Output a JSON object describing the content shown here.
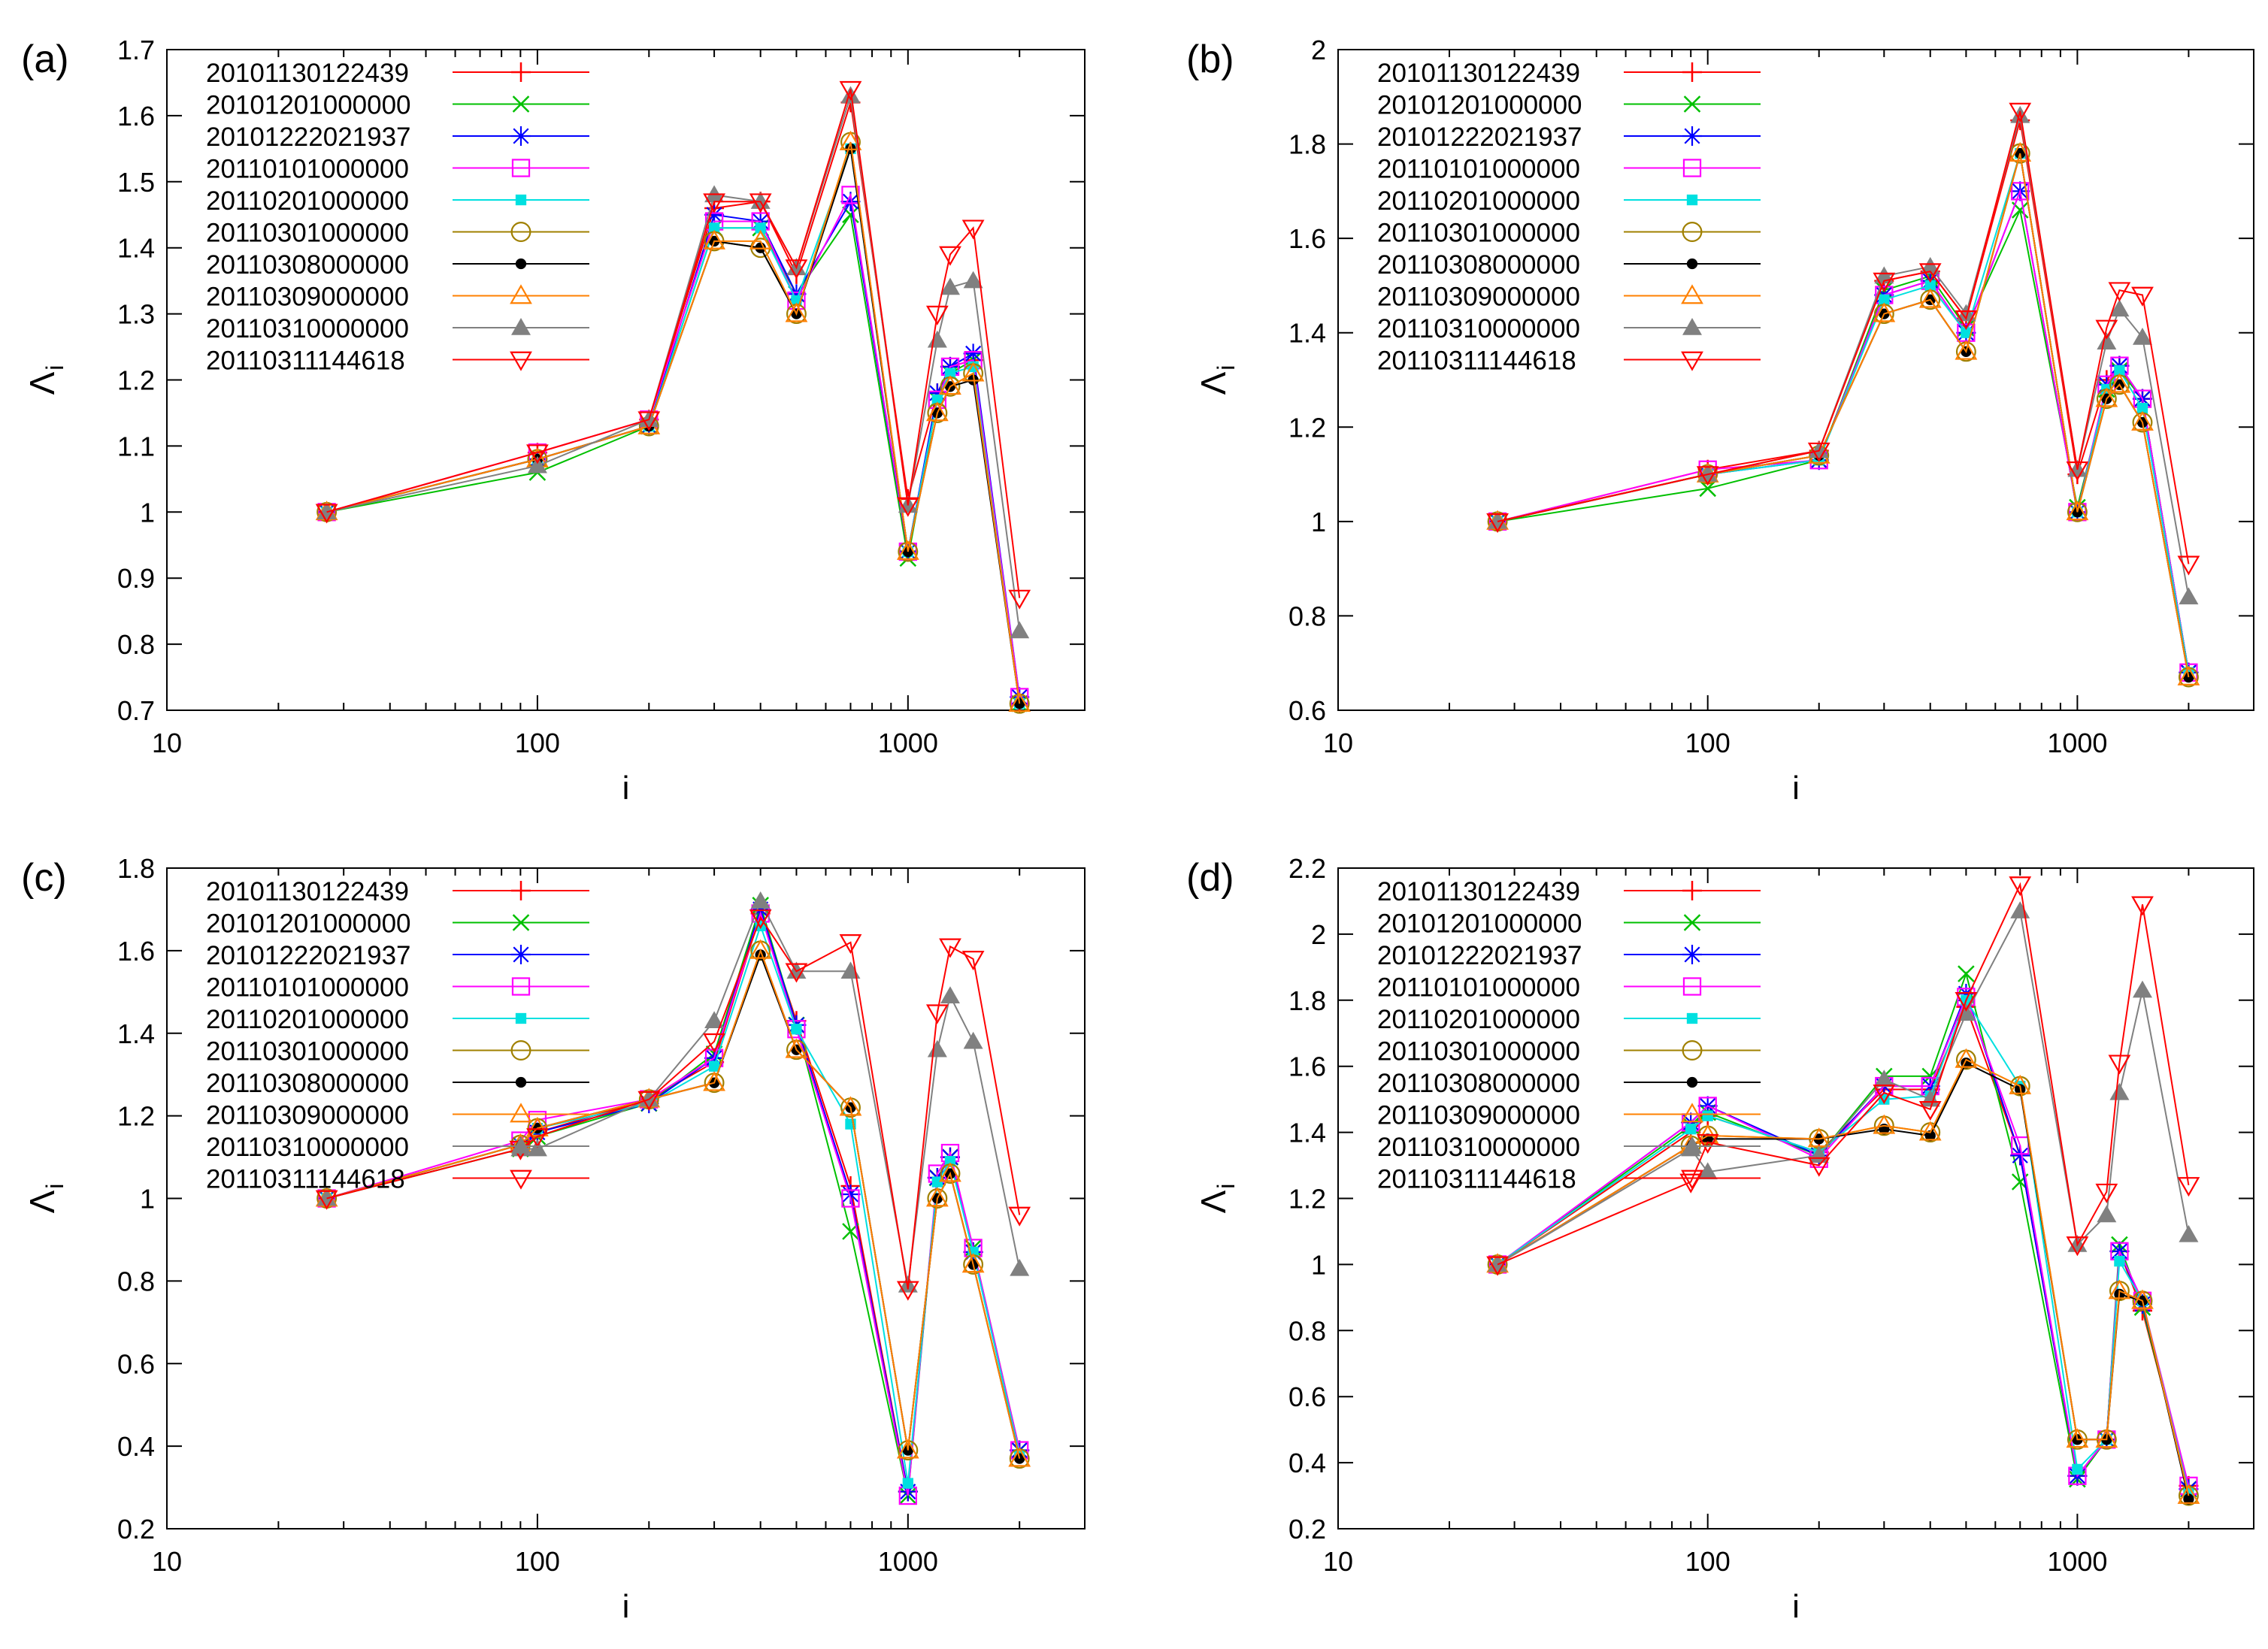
{
  "chart_data": [
    {
      "type": "line",
      "panel_label": "(a)",
      "xlabel": "i",
      "ylabel": "Λ",
      "ylabel_sub": "i",
      "x_scale": "log",
      "xlim": [
        10,
        3000
      ],
      "ylim": [
        0.7,
        1.7
      ],
      "x_ticks": [
        10,
        100,
        1000
      ],
      "y_ticks": [
        0.7,
        0.8,
        0.9,
        1,
        1.1,
        1.2,
        1.3,
        1.4,
        1.5,
        1.6,
        1.7
      ],
      "grid": false,
      "legend_position": "top-left",
      "x": [
        27,
        100,
        200,
        300,
        400,
        500,
        700,
        1000,
        1200,
        1300,
        1500,
        2000
      ],
      "series": [
        {
          "name": "20101130122439",
          "color": "#ff0000",
          "marker": "plus",
          "values": [
            1,
            1.09,
            1.14,
            1.46,
            1.47,
            1.36,
            1.62,
            1.02,
            1.18,
            1.22,
            1.23,
            0.71
          ]
        },
        {
          "name": "20101201000000",
          "color": "#00c000",
          "marker": "cross",
          "values": [
            1,
            1.06,
            1.13,
            1.43,
            1.43,
            1.33,
            1.45,
            0.93,
            1.17,
            1.21,
            1.23,
            0.71
          ]
        },
        {
          "name": "20101222021937",
          "color": "#0000ff",
          "marker": "star",
          "values": [
            1,
            1.08,
            1.13,
            1.45,
            1.44,
            1.33,
            1.47,
            0.94,
            1.18,
            1.22,
            1.24,
            0.72
          ]
        },
        {
          "name": "20110101000000",
          "color": "#ff00ff",
          "marker": "square",
          "values": [
            1,
            1.09,
            1.14,
            1.44,
            1.44,
            1.32,
            1.48,
            0.94,
            1.17,
            1.22,
            1.23,
            0.72
          ]
        },
        {
          "name": "20110201000000",
          "color": "#00e0e0",
          "marker": "filled-square",
          "values": [
            1,
            1.08,
            1.13,
            1.43,
            1.43,
            1.32,
            1.55,
            0.94,
            1.17,
            1.21,
            1.22,
            0.71
          ]
        },
        {
          "name": "20110301000000",
          "color": "#a08000",
          "marker": "circle",
          "values": [
            1,
            1.08,
            1.13,
            1.41,
            1.4,
            1.3,
            1.56,
            0.94,
            1.15,
            1.19,
            1.21,
            0.71
          ]
        },
        {
          "name": "20110308000000",
          "color": "#000000",
          "marker": "filled-circle",
          "values": [
            1,
            1.08,
            1.13,
            1.41,
            1.4,
            1.3,
            1.55,
            0.94,
            1.15,
            1.19,
            1.2,
            0.71
          ]
        },
        {
          "name": "20110309000000",
          "color": "#ff8000",
          "marker": "triangle",
          "values": [
            1,
            1.08,
            1.13,
            1.41,
            1.41,
            1.3,
            1.56,
            0.94,
            1.15,
            1.19,
            1.21,
            0.71
          ]
        },
        {
          "name": "20110310000000",
          "color": "#808080",
          "marker": "filled-triangle",
          "values": [
            1,
            1.07,
            1.14,
            1.48,
            1.47,
            1.37,
            1.63,
            1.01,
            1.26,
            1.34,
            1.35,
            0.82
          ]
        },
        {
          "name": "20110311144618",
          "color": "#ff0000",
          "marker": "inverted-triangle",
          "values": [
            1,
            1.09,
            1.14,
            1.47,
            1.47,
            1.37,
            1.64,
            1.01,
            1.3,
            1.39,
            1.43,
            0.87
          ]
        }
      ]
    },
    {
      "type": "line",
      "panel_label": "(b)",
      "xlabel": "i",
      "ylabel": "Λ",
      "ylabel_sub": "i",
      "x_scale": "log",
      "xlim": [
        10,
        3000
      ],
      "ylim": [
        0.6,
        2.0
      ],
      "x_ticks": [
        10,
        100,
        1000
      ],
      "y_ticks": [
        0.6,
        0.8,
        1,
        1.2,
        1.4,
        1.6,
        1.8,
        2
      ],
      "grid": false,
      "legend_position": "top-left",
      "x": [
        27,
        100,
        200,
        300,
        400,
        500,
        700,
        1000,
        1200,
        1300,
        1500,
        2000
      ],
      "series": [
        {
          "name": "20101130122439",
          "color": "#ff0000",
          "marker": "plus",
          "values": [
            1,
            1.11,
            1.15,
            1.51,
            1.53,
            1.43,
            1.85,
            1.1,
            1.3,
            1.33,
            1.26,
            0.68
          ]
        },
        {
          "name": "20101201000000",
          "color": "#00c000",
          "marker": "cross",
          "values": [
            1,
            1.07,
            1.13,
            1.49,
            1.52,
            1.41,
            1.66,
            1.03,
            1.28,
            1.32,
            1.26,
            0.68
          ]
        },
        {
          "name": "20101222021937",
          "color": "#0000ff",
          "marker": "star",
          "values": [
            1,
            1.1,
            1.13,
            1.48,
            1.51,
            1.4,
            1.7,
            1.02,
            1.29,
            1.33,
            1.26,
            0.68
          ]
        },
        {
          "name": "20110101000000",
          "color": "#ff00ff",
          "marker": "square",
          "values": [
            1,
            1.11,
            1.13,
            1.48,
            1.51,
            1.4,
            1.7,
            1.02,
            1.29,
            1.33,
            1.26,
            0.68
          ]
        },
        {
          "name": "20110201000000",
          "color": "#00e0e0",
          "marker": "filled-square",
          "values": [
            1,
            1.1,
            1.13,
            1.47,
            1.5,
            1.4,
            1.78,
            1.02,
            1.28,
            1.32,
            1.24,
            0.68
          ]
        },
        {
          "name": "20110301000000",
          "color": "#a08000",
          "marker": "circle",
          "values": [
            1,
            1.1,
            1.14,
            1.44,
            1.47,
            1.36,
            1.78,
            1.02,
            1.26,
            1.29,
            1.21,
            0.67
          ]
        },
        {
          "name": "20110308000000",
          "color": "#000000",
          "marker": "filled-circle",
          "values": [
            1,
            1.1,
            1.14,
            1.44,
            1.47,
            1.36,
            1.78,
            1.02,
            1.26,
            1.29,
            1.21,
            0.67
          ]
        },
        {
          "name": "20110309000000",
          "color": "#ff8000",
          "marker": "triangle",
          "values": [
            1,
            1.1,
            1.14,
            1.44,
            1.47,
            1.36,
            1.78,
            1.02,
            1.26,
            1.29,
            1.21,
            0.67
          ]
        },
        {
          "name": "20110310000000",
          "color": "#808080",
          "marker": "filled-triangle",
          "values": [
            1,
            1.1,
            1.15,
            1.52,
            1.54,
            1.44,
            1.86,
            1.11,
            1.38,
            1.45,
            1.39,
            0.84
          ]
        },
        {
          "name": "20110311144618",
          "color": "#ff0000",
          "marker": "inverted-triangle",
          "values": [
            1,
            1.1,
            1.15,
            1.51,
            1.53,
            1.43,
            1.87,
            1.11,
            1.41,
            1.49,
            1.48,
            0.91
          ]
        }
      ]
    },
    {
      "type": "line",
      "panel_label": "(c)",
      "xlabel": "i",
      "ylabel": "Λ",
      "ylabel_sub": "i",
      "x_scale": "log",
      "xlim": [
        10,
        3000
      ],
      "ylim": [
        0.2,
        1.8
      ],
      "x_ticks": [
        10,
        100,
        1000
      ],
      "y_ticks": [
        0.2,
        0.4,
        0.6,
        0.8,
        1,
        1.2,
        1.4,
        1.6,
        1.8
      ],
      "grid": false,
      "legend_position": "top-left",
      "x": [
        27,
        90,
        100,
        200,
        300,
        400,
        500,
        700,
        1000,
        1200,
        1300,
        1500,
        2000
      ],
      "series": [
        {
          "name": "20101130122439",
          "color": "#ff0000",
          "marker": "plus",
          "values": [
            1,
            1.12,
            1.16,
            1.24,
            1.33,
            1.69,
            1.43,
            1.03,
            0.29,
            1.05,
            1.1,
            0.87,
            0.39
          ]
        },
        {
          "name": "20101201000000",
          "color": "#00c000",
          "marker": "cross",
          "values": [
            1,
            1.12,
            1.15,
            1.23,
            1.35,
            1.71,
            1.42,
            0.92,
            0.28,
            1.05,
            1.1,
            0.88,
            0.39
          ]
        },
        {
          "name": "20101222021937",
          "color": "#0000ff",
          "marker": "star",
          "values": [
            1,
            1.13,
            1.16,
            1.23,
            1.34,
            1.7,
            1.42,
            1.01,
            0.29,
            1.05,
            1.1,
            0.87,
            0.39
          ]
        },
        {
          "name": "20110101000000",
          "color": "#ff00ff",
          "marker": "square",
          "values": [
            1,
            1.14,
            1.19,
            1.24,
            1.34,
            1.69,
            1.41,
            1.0,
            0.28,
            1.06,
            1.11,
            0.88,
            0.39
          ]
        },
        {
          "name": "20110201000000",
          "color": "#00e0e0",
          "marker": "filled-square",
          "values": [
            1,
            1.13,
            1.17,
            1.23,
            1.32,
            1.66,
            1.41,
            1.18,
            0.31,
            1.04,
            1.09,
            0.87,
            0.38
          ]
        },
        {
          "name": "20110301000000",
          "color": "#a08000",
          "marker": "circle",
          "values": [
            1,
            1.13,
            1.17,
            1.24,
            1.28,
            1.6,
            1.36,
            1.22,
            0.39,
            1.0,
            1.06,
            0.84,
            0.37
          ]
        },
        {
          "name": "20110308000000",
          "color": "#000000",
          "marker": "filled-circle",
          "values": [
            1,
            1.13,
            1.17,
            1.24,
            1.28,
            1.59,
            1.36,
            1.22,
            0.39,
            1.0,
            1.06,
            0.84,
            0.37
          ]
        },
        {
          "name": "20110309000000",
          "color": "#ff8000",
          "marker": "triangle",
          "values": [
            1,
            1.13,
            1.17,
            1.24,
            1.28,
            1.6,
            1.36,
            1.22,
            0.39,
            1.0,
            1.06,
            0.84,
            0.37
          ]
        },
        {
          "name": "20110310000000",
          "color": "#808080",
          "marker": "filled-triangle",
          "values": [
            1,
            1.12,
            1.12,
            1.24,
            1.43,
            1.72,
            1.55,
            1.55,
            0.79,
            1.36,
            1.49,
            1.38,
            0.83
          ]
        },
        {
          "name": "20110311144618",
          "color": "#ff0000",
          "marker": "inverted-triangle",
          "values": [
            1,
            1.12,
            1.15,
            1.24,
            1.38,
            1.68,
            1.55,
            1.62,
            0.78,
            1.45,
            1.61,
            1.58,
            0.96
          ]
        }
      ]
    },
    {
      "type": "line",
      "panel_label": "(d)",
      "xlabel": "i",
      "ylabel": "Λ",
      "ylabel_sub": "i",
      "x_scale": "log",
      "xlim": [
        10,
        3000
      ],
      "ylim": [
        0.2,
        2.2
      ],
      "x_ticks": [
        10,
        100,
        1000
      ],
      "y_ticks": [
        0.2,
        0.4,
        0.6,
        0.8,
        1,
        1.2,
        1.4,
        1.6,
        1.8,
        2,
        2.2
      ],
      "grid": false,
      "legend_position": "top-left",
      "x": [
        27,
        90,
        100,
        200,
        300,
        400,
        500,
        700,
        1000,
        1200,
        1300,
        1500,
        2000
      ],
      "series": [
        {
          "name": "20101130122439",
          "color": "#ff0000",
          "marker": "plus",
          "values": [
            1,
            1.4,
            1.45,
            1.34,
            1.53,
            1.53,
            1.78,
            1.33,
            0.36,
            0.47,
            1.04,
            0.86,
            0.33
          ]
        },
        {
          "name": "20101201000000",
          "color": "#00c000",
          "marker": "cross",
          "values": [
            1,
            1.42,
            1.46,
            1.33,
            1.57,
            1.57,
            1.88,
            1.25,
            0.35,
            0.47,
            1.06,
            0.87,
            0.32
          ]
        },
        {
          "name": "20101222021937",
          "color": "#0000ff",
          "marker": "star",
          "values": [
            1,
            1.43,
            1.48,
            1.33,
            1.54,
            1.54,
            1.82,
            1.33,
            0.36,
            0.47,
            1.04,
            0.88,
            0.32
          ]
        },
        {
          "name": "20110101000000",
          "color": "#ff00ff",
          "marker": "square",
          "values": [
            1,
            1.43,
            1.48,
            1.32,
            1.54,
            1.54,
            1.81,
            1.36,
            0.36,
            0.47,
            1.04,
            0.89,
            0.33
          ]
        },
        {
          "name": "20110201000000",
          "color": "#00e0e0",
          "marker": "filled-square",
          "values": [
            1,
            1.41,
            1.45,
            1.34,
            1.5,
            1.51,
            1.8,
            1.54,
            0.38,
            0.47,
            1.01,
            0.89,
            0.31
          ]
        },
        {
          "name": "20110301000000",
          "color": "#a08000",
          "marker": "circle",
          "values": [
            1,
            1.36,
            1.39,
            1.38,
            1.42,
            1.4,
            1.62,
            1.54,
            0.47,
            0.47,
            0.92,
            0.89,
            0.3
          ]
        },
        {
          "name": "20110308000000",
          "color": "#000000",
          "marker": "filled-circle",
          "values": [
            1,
            1.36,
            1.38,
            1.38,
            1.41,
            1.39,
            1.61,
            1.53,
            0.47,
            0.47,
            0.91,
            0.89,
            0.29
          ]
        },
        {
          "name": "20110309000000",
          "color": "#ff8000",
          "marker": "triangle",
          "values": [
            1,
            1.36,
            1.39,
            1.38,
            1.42,
            1.4,
            1.62,
            1.54,
            0.47,
            0.47,
            0.92,
            0.89,
            0.3
          ]
        },
        {
          "name": "20110310000000",
          "color": "#808080",
          "marker": "filled-triangle",
          "values": [
            1,
            1.35,
            1.28,
            1.33,
            1.56,
            1.5,
            1.76,
            2.07,
            1.06,
            1.15,
            1.52,
            1.83,
            1.09
          ]
        },
        {
          "name": "20110311144618",
          "color": "#ff0000",
          "marker": "inverted-triangle",
          "values": [
            1,
            1.25,
            1.37,
            1.3,
            1.52,
            1.47,
            1.8,
            2.15,
            1.06,
            1.22,
            1.61,
            2.09,
            1.24
          ]
        }
      ]
    }
  ]
}
